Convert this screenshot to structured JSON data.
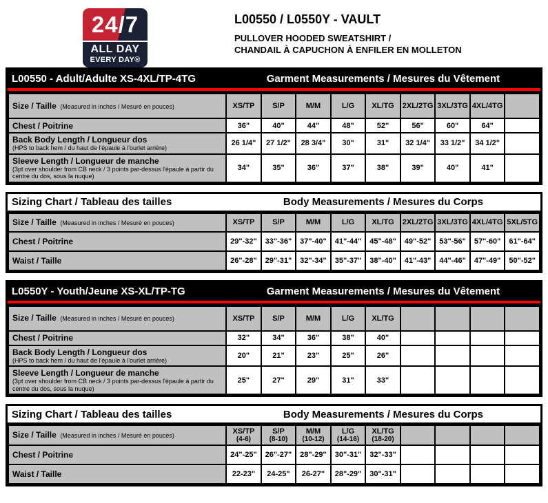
{
  "header": {
    "logo": {
      "top": "24/7",
      "all_day": "ALL DAY",
      "every_day": "EVERY DAY®"
    },
    "title": "L00550 / L0550Y - VAULT",
    "subtitle_line1": "PULLOVER HOODED SWEATSHIRT /",
    "subtitle_line2": "CHANDAIL À CAPUCHON À ENFILER EN MOLLETON"
  },
  "colors": {
    "logo_red": "#c52332",
    "logo_navy": "#1a2134",
    "divider_red": "#ff0000",
    "cell_gray": "#c0c0c0",
    "bar_black": "#000000"
  },
  "sections": [
    {
      "style": "black",
      "bar_left": "L00550 - Adult/Adulte XS-4XL/TP-4TG",
      "bar_right": "Garment Measurements / Mesures du Vêtement",
      "size_label": "Size / Taille",
      "size_note": "(Measured in inches / Mesuré en pouces)",
      "columns": [
        {
          "label": "XS/TP",
          "sub": ""
        },
        {
          "label": "S/P",
          "sub": ""
        },
        {
          "label": "M/M",
          "sub": ""
        },
        {
          "label": "L/G",
          "sub": ""
        },
        {
          "label": "XL/TG",
          "sub": ""
        },
        {
          "label": "2XL/2TG",
          "sub": ""
        },
        {
          "label": "3XL/3TG",
          "sub": ""
        },
        {
          "label": "4XL/4TG",
          "sub": ""
        },
        {
          "label": "",
          "sub": ""
        }
      ],
      "rows": [
        {
          "label": "Chest / Poitrine",
          "note": "",
          "values": [
            "36\"",
            "40\"",
            "44\"",
            "48\"",
            "52\"",
            "56\"",
            "60\"",
            "64\"",
            ""
          ]
        },
        {
          "label": "Back Body Length / Longueur dos",
          "note": "(HPS to back hem / du haut de l'épaule à l'ourlet arrière)",
          "values": [
            "26 1/4\"",
            "27 1/2\"",
            "28 3/4\"",
            "30\"",
            "31\"",
            "32 1/4\"",
            "33 1/2\"",
            "34 1/2\"",
            ""
          ]
        },
        {
          "label": "Sleeve Length / Longueur de manche",
          "note": "(3pt over shoulder from CB neck / 3 points par-dessus l'épaule à partir du centre du dos, sous la nuque)",
          "values": [
            "34\"",
            "35\"",
            "36\"",
            "37\"",
            "38\"",
            "39\"",
            "40\"",
            "41\"",
            ""
          ]
        }
      ]
    },
    {
      "style": "white",
      "bar_left": "Sizing Chart / Tableau des tailles",
      "bar_right": "Body Measurements / Mesures du Corps",
      "size_label": "Size / Taille",
      "size_note": "(Measured in inches / Mesuré en pouces)",
      "columns": [
        {
          "label": "XS/TP",
          "sub": ""
        },
        {
          "label": "S/P",
          "sub": ""
        },
        {
          "label": "M/M",
          "sub": ""
        },
        {
          "label": "L/G",
          "sub": ""
        },
        {
          "label": "XL/TG",
          "sub": ""
        },
        {
          "label": "2XL/2TG",
          "sub": ""
        },
        {
          "label": "3XL/3TG",
          "sub": ""
        },
        {
          "label": "4XL/4TG",
          "sub": ""
        },
        {
          "label": "5XL/5TG",
          "sub": ""
        }
      ],
      "rows": [
        {
          "label": "Chest / Poitrine",
          "note": "",
          "values": [
            "29\"-32\"",
            "33\"-36\"",
            "37\"-40\"",
            "41\"-44\"",
            "45\"-48\"",
            "49\"-52\"",
            "53\"-56\"",
            "57\"-60\"",
            "61\"-64\""
          ]
        },
        {
          "label": "Waist / Taille",
          "note": "",
          "values": [
            "26\"-28\"",
            "29\"-31\"",
            "32\"-34\"",
            "35\"-37\"",
            "38\"-40\"",
            "41\"-43\"",
            "44\"-46\"",
            "47\"-49\"",
            "50\"-52\""
          ]
        }
      ]
    },
    {
      "style": "black",
      "bar_left": "L0550Y - Youth/Jeune XS-XL/TP-TG",
      "bar_right": "Garment Measurements / Mesures du Vêtement",
      "size_label": "Size / Taille",
      "size_note": "(Measured in inches / Mesuré en pouces)",
      "columns": [
        {
          "label": "XS/TP",
          "sub": ""
        },
        {
          "label": "S/P",
          "sub": ""
        },
        {
          "label": "M/M",
          "sub": ""
        },
        {
          "label": "L/G",
          "sub": ""
        },
        {
          "label": "XL/TG",
          "sub": ""
        },
        {
          "label": "",
          "sub": ""
        },
        {
          "label": "",
          "sub": ""
        },
        {
          "label": "",
          "sub": ""
        },
        {
          "label": "",
          "sub": ""
        }
      ],
      "rows": [
        {
          "label": "Chest / Poitrine",
          "note": "",
          "values": [
            "32\"",
            "34\"",
            "36\"",
            "38\"",
            "40\"",
            "",
            "",
            "",
            ""
          ]
        },
        {
          "label": "Back Body Length / Longueur dos",
          "note": "(HPS to back hem / du haut de l'épaule à l'ourlet arrière)",
          "values": [
            "20\"",
            "21\"",
            "23\"",
            "25\"",
            "26\"",
            "",
            "",
            "",
            ""
          ]
        },
        {
          "label": "Sleeve Length / Longueur de manche",
          "note": "(3pt over shoulder from CB neck / 3 points par-dessus l'épaule à partir du centre du dos, sous la nuque)",
          "values": [
            "25\"",
            "27\"",
            "29\"",
            "31\"",
            "33\"",
            "",
            "",
            "",
            ""
          ]
        }
      ]
    },
    {
      "style": "white",
      "bar_left": "Sizing Chart / Tableau des tailles",
      "bar_right": "Body Measurements / Mesures du Corps",
      "size_label": "Size / Taille",
      "size_note": "(Measured in inches / Mesuré en pouces)",
      "columns": [
        {
          "label": "XS/TP",
          "sub": "(4-6)"
        },
        {
          "label": "S/P",
          "sub": "(8-10)"
        },
        {
          "label": "M/M",
          "sub": "(10-12)"
        },
        {
          "label": "L/G",
          "sub": "(14-16)"
        },
        {
          "label": "XL/TG",
          "sub": "(18-20)"
        },
        {
          "label": "",
          "sub": ""
        },
        {
          "label": "",
          "sub": ""
        },
        {
          "label": "",
          "sub": ""
        },
        {
          "label": "",
          "sub": ""
        }
      ],
      "rows": [
        {
          "label": "Chest / Poitrine",
          "note": "",
          "values": [
            "24\"-25\"",
            "26\"-27\"",
            "28\"-29\"",
            "30\"-31\"",
            "32\"-33\"",
            "",
            "",
            "",
            ""
          ]
        },
        {
          "label": "Waist / Taille",
          "note": "",
          "values": [
            "22-23\"",
            "24-25\"",
            "26-27\"",
            "28\"-29\"",
            "30\"-31\"",
            "",
            "",
            "",
            ""
          ]
        }
      ]
    }
  ]
}
